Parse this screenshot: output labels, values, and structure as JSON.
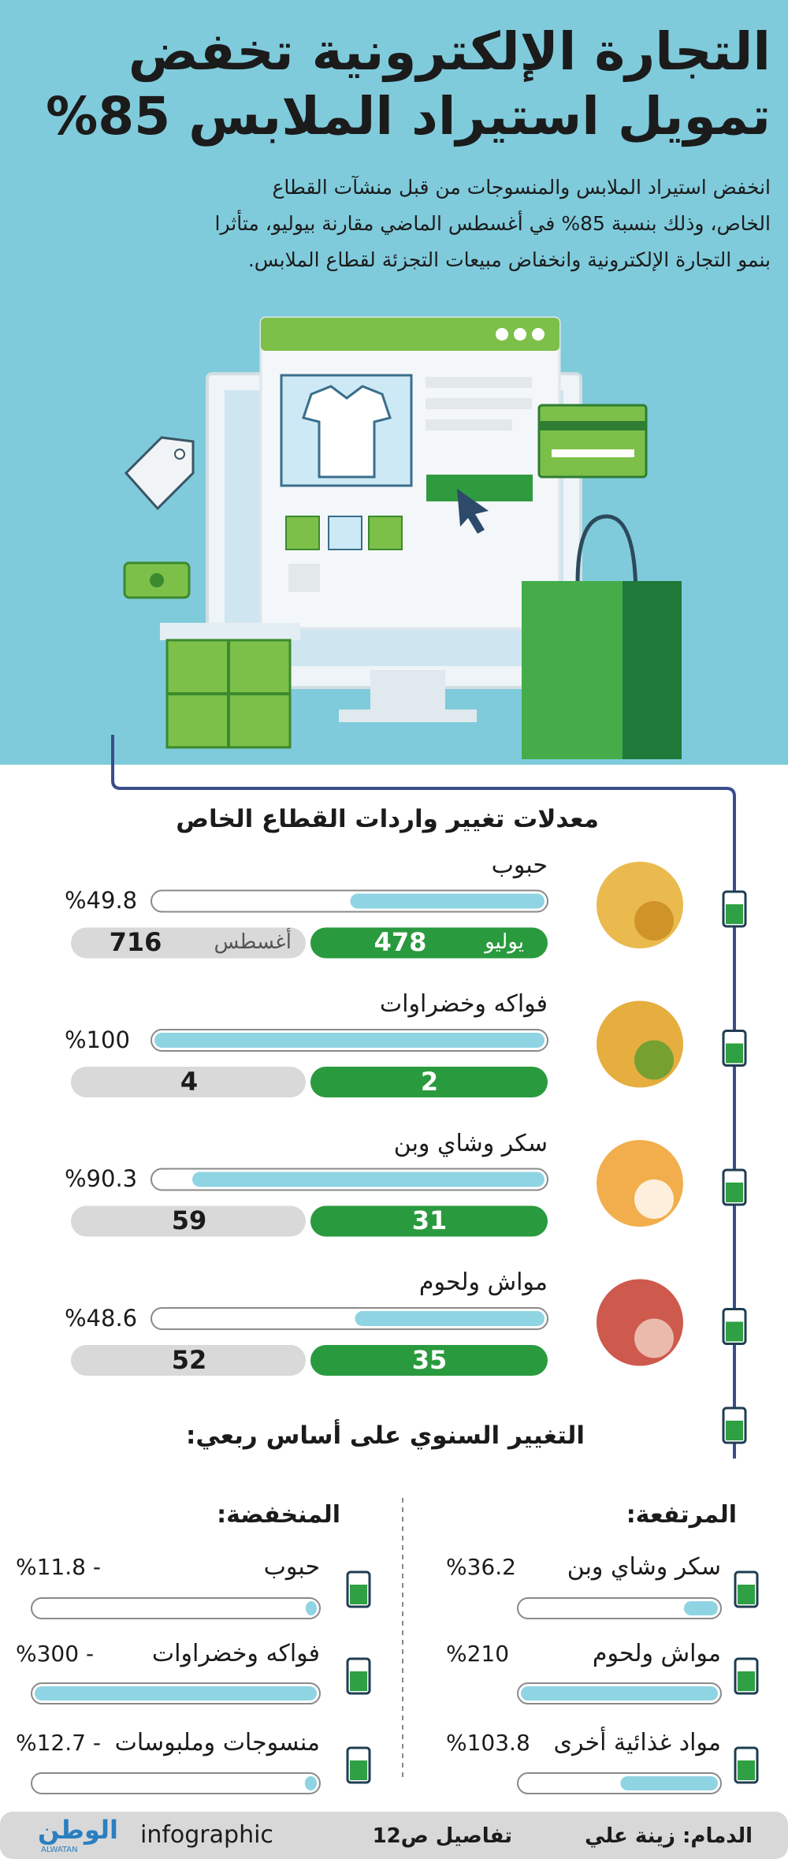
{
  "header": {
    "title_line1": "التجارة الإلكترونية تخفض",
    "title_line2": "تمويل استيراد الملابس 85%",
    "body": [
      "انخفض استيراد الملابس والمنسوجات من قبل منشآت القطاع",
      "الخاص، وذلك بنسبة 85% في أغسطس الماضي مقارنة بيوليو، متأثرا",
      "بنمو التجارة الإلكترونية وانخفاض مبيعات التجزئة لقطاع الملابس."
    ]
  },
  "imports": {
    "title": "معدلات تغيير واردات القطاع الخاص",
    "july_label": "يوليو",
    "august_label": "أغسطس",
    "items": [
      {
        "name": "حبوب",
        "change": {
          "value": 49.8,
          "label": "%49.8"
        },
        "july": 478,
        "august": 716
      },
      {
        "name": "فواكه وخضراوات",
        "change": {
          "value": 100,
          "label": "%100"
        },
        "july": 2,
        "august": 4
      },
      {
        "name": "سكر وشاي وبن",
        "change": {
          "value": 90.3,
          "label": "%90.3"
        },
        "july": 31,
        "august": 59
      },
      {
        "name": "مواش ولحوم",
        "change": {
          "value": 48.6,
          "label": "%48.6"
        },
        "july": 35,
        "august": 52
      }
    ]
  },
  "quarterly": {
    "title": "التغيير السنوي على أساس ربعي:",
    "rising": {
      "title": "المرتفعة:",
      "items": [
        {
          "name": "سكر وشاي وبن",
          "change": {
            "value": 36.2,
            "label": "%36.2"
          }
        },
        {
          "name": "مواش ولحوم",
          "change": {
            "value": 210,
            "label": "%210"
          }
        },
        {
          "name": "مواد غذائية أخرى",
          "change": {
            "value": 103.8,
            "label": "%103.8"
          }
        }
      ]
    },
    "falling": {
      "title": "المنخفضة:",
      "items": [
        {
          "name": "حبوب",
          "change": {
            "value": -11.8,
            "label": "%11.8 -"
          }
        },
        {
          "name": "فواكه وخضراوات",
          "change": {
            "value": -300,
            "label": "%300 -"
          }
        },
        {
          "name": "منسوجات وملبوسات",
          "change": {
            "value": -12.7,
            "label": "%12.7 -"
          }
        }
      ]
    }
  },
  "footer": {
    "location": "الدمام: زينة علي",
    "details": "تفاصيل ص12",
    "brand": "infographic",
    "logo": "الوطن",
    "logo_latin": "ALWATAN"
  }
}
